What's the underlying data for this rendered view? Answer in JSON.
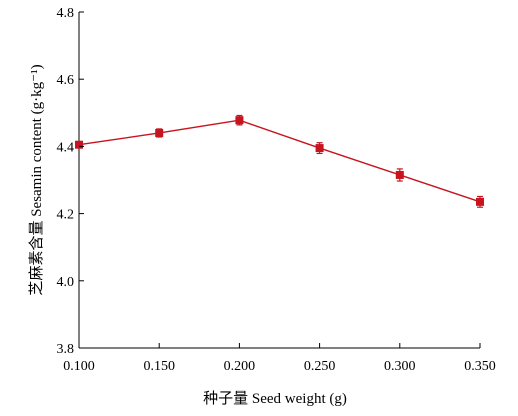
{
  "chart_data": {
    "type": "line",
    "xlabel": "种子量 Seed weight (g)",
    "ylabel": "芝麻素含量 Sesamin content (g·kg⁻¹)",
    "xlim": [
      0.1,
      0.35
    ],
    "ylim": [
      3.8,
      4.8
    ],
    "x_ticks": [
      "0.100",
      "0.150",
      "0.200",
      "0.250",
      "0.300",
      "0.350"
    ],
    "y_ticks": [
      "3.8",
      "4.0",
      "4.2",
      "4.4",
      "4.6",
      "4.8"
    ],
    "grid": false,
    "legend": "none",
    "series": [
      {
        "color": "#c8141e",
        "marker": "square",
        "x": [
          0.1,
          0.15,
          0.2,
          0.25,
          0.3,
          0.35
        ],
        "y": [
          4.405,
          4.44,
          4.478,
          4.395,
          4.315,
          4.235
        ],
        "error": [
          0.008,
          0.012,
          0.014,
          0.016,
          0.018,
          0.016
        ]
      }
    ]
  }
}
